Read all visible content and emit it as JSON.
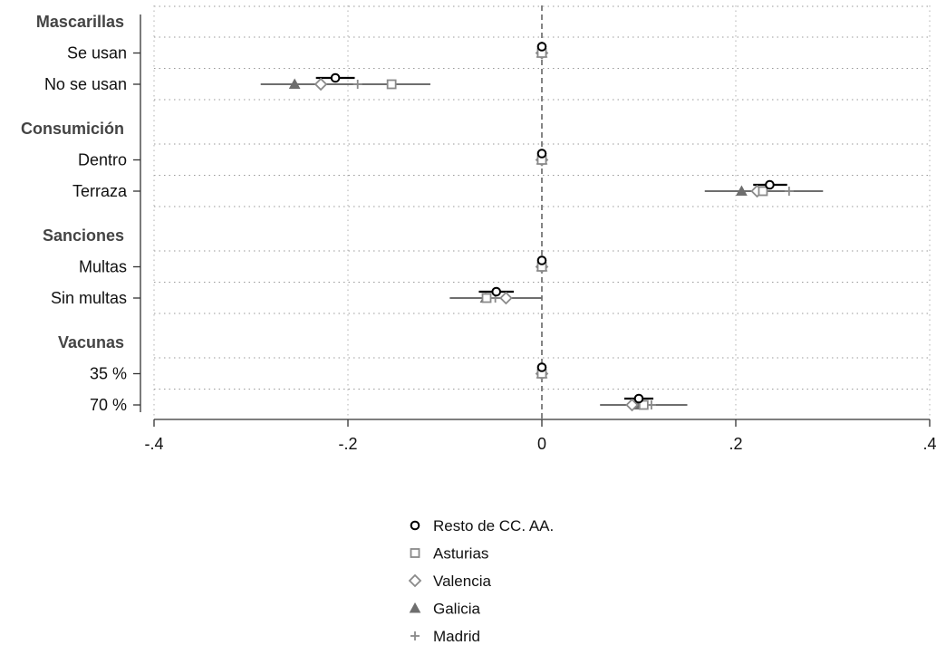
{
  "chart_data": {
    "type": "scatter",
    "xlim": [
      -0.4,
      0.4
    ],
    "xticks": [
      -0.4,
      -0.2,
      0,
      0.2,
      0.4
    ],
    "xtick_labels": [
      "-.4",
      "-.2",
      "0",
      ".2",
      ".4"
    ],
    "reference_line": 0,
    "grid": "dotted horizontal",
    "legend_position": "bottom-center",
    "groups": [
      {
        "label": "Mascarillas",
        "levels": [
          "Se usan",
          "No se usan"
        ]
      },
      {
        "label": "Consumición",
        "levels": [
          "Dentro",
          "Terraza"
        ]
      },
      {
        "label": "Sanciones",
        "levels": [
          "Multas",
          "Sin multas"
        ]
      },
      {
        "label": "Vacunas",
        "levels": [
          "35 %",
          "70 %"
        ]
      }
    ],
    "series": [
      {
        "name": "Resto de CC. AA.",
        "marker": "circle",
        "color": "#000000",
        "values": [
          0,
          -0.213,
          0,
          0.235,
          0,
          -0.047,
          0,
          0.1
        ],
        "ci": [
          null,
          [
            -0.233,
            -0.193
          ],
          null,
          [
            0.218,
            0.253
          ],
          null,
          [
            -0.065,
            -0.029
          ],
          null,
          [
            0.085,
            0.115
          ]
        ]
      },
      {
        "name": "Asturias",
        "marker": "square",
        "color": "#8a8a8a",
        "values": [
          0,
          -0.155,
          0,
          0.228,
          0,
          -0.057,
          0,
          0.105
        ],
        "ci": [
          null,
          null,
          null,
          null,
          null,
          null,
          null,
          null
        ]
      },
      {
        "name": "Valencia",
        "marker": "diamond",
        "color": "#8a8a8a",
        "values": [
          0,
          -0.228,
          0,
          0.222,
          0,
          -0.037,
          0,
          0.093
        ],
        "ci": [
          null,
          null,
          null,
          null,
          null,
          null,
          null,
          null
        ]
      },
      {
        "name": "Galicia",
        "marker": "triangle",
        "color": "#6e6e6e",
        "values": [
          0,
          -0.255,
          0,
          0.206,
          0,
          -0.058,
          0,
          0.099
        ],
        "ci": [
          null,
          [
            -0.29,
            -0.115
          ],
          null,
          [
            0.168,
            0.29
          ],
          null,
          [
            -0.095,
            0.0
          ],
          null,
          [
            0.06,
            0.15
          ]
        ]
      },
      {
        "name": "Madrid",
        "marker": "plus",
        "color": "#8a8a8a",
        "values": [
          0,
          -0.19,
          0,
          0.255,
          0,
          -0.048,
          0,
          0.113
        ],
        "ci": [
          null,
          null,
          null,
          null,
          null,
          null,
          null,
          null
        ]
      }
    ]
  }
}
